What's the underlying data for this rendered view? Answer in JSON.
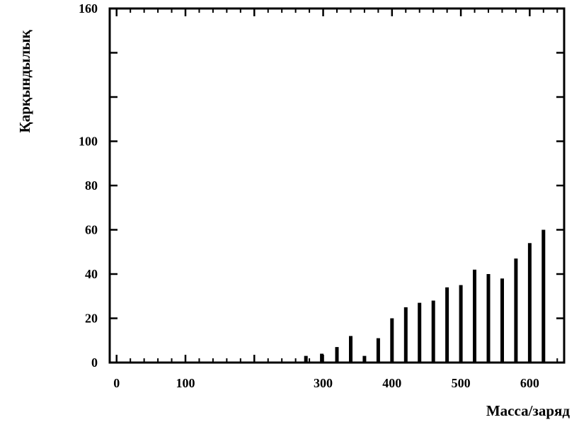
{
  "chart_data": {
    "type": "bar",
    "title": "",
    "xlabel": "Масса/заряд",
    "ylabel": "Қарқындылық",
    "x_ticks": [
      {
        "label": "0",
        "value": 0
      },
      {
        "label": "100",
        "value": 100
      },
      {
        "label": "300",
        "value": 300
      },
      {
        "label": "400",
        "value": 400
      },
      {
        "label": "500",
        "value": 500
      },
      {
        "label": "600",
        "value": 600
      }
    ],
    "y_ticks": [
      {
        "label": "0",
        "value": 0
      },
      {
        "label": "20",
        "value": 20
      },
      {
        "label": "40",
        "value": 40
      },
      {
        "label": "60",
        "value": 60
      },
      {
        "label": "80",
        "value": 80
      },
      {
        "label": "100",
        "value": 100
      },
      {
        "label": "160",
        "value": 160
      }
    ],
    "xlim": [
      -10,
      650
    ],
    "ylim": [
      0,
      160
    ],
    "grid": false,
    "x": [
      275,
      298,
      320,
      340,
      360,
      380,
      400,
      420,
      440,
      460,
      480,
      500,
      520,
      540,
      560,
      580,
      600,
      620
    ],
    "values": [
      3,
      4,
      7,
      12,
      3,
      11,
      20,
      25,
      27,
      28,
      34,
      35,
      42,
      40,
      38,
      47,
      54,
      60
    ]
  }
}
